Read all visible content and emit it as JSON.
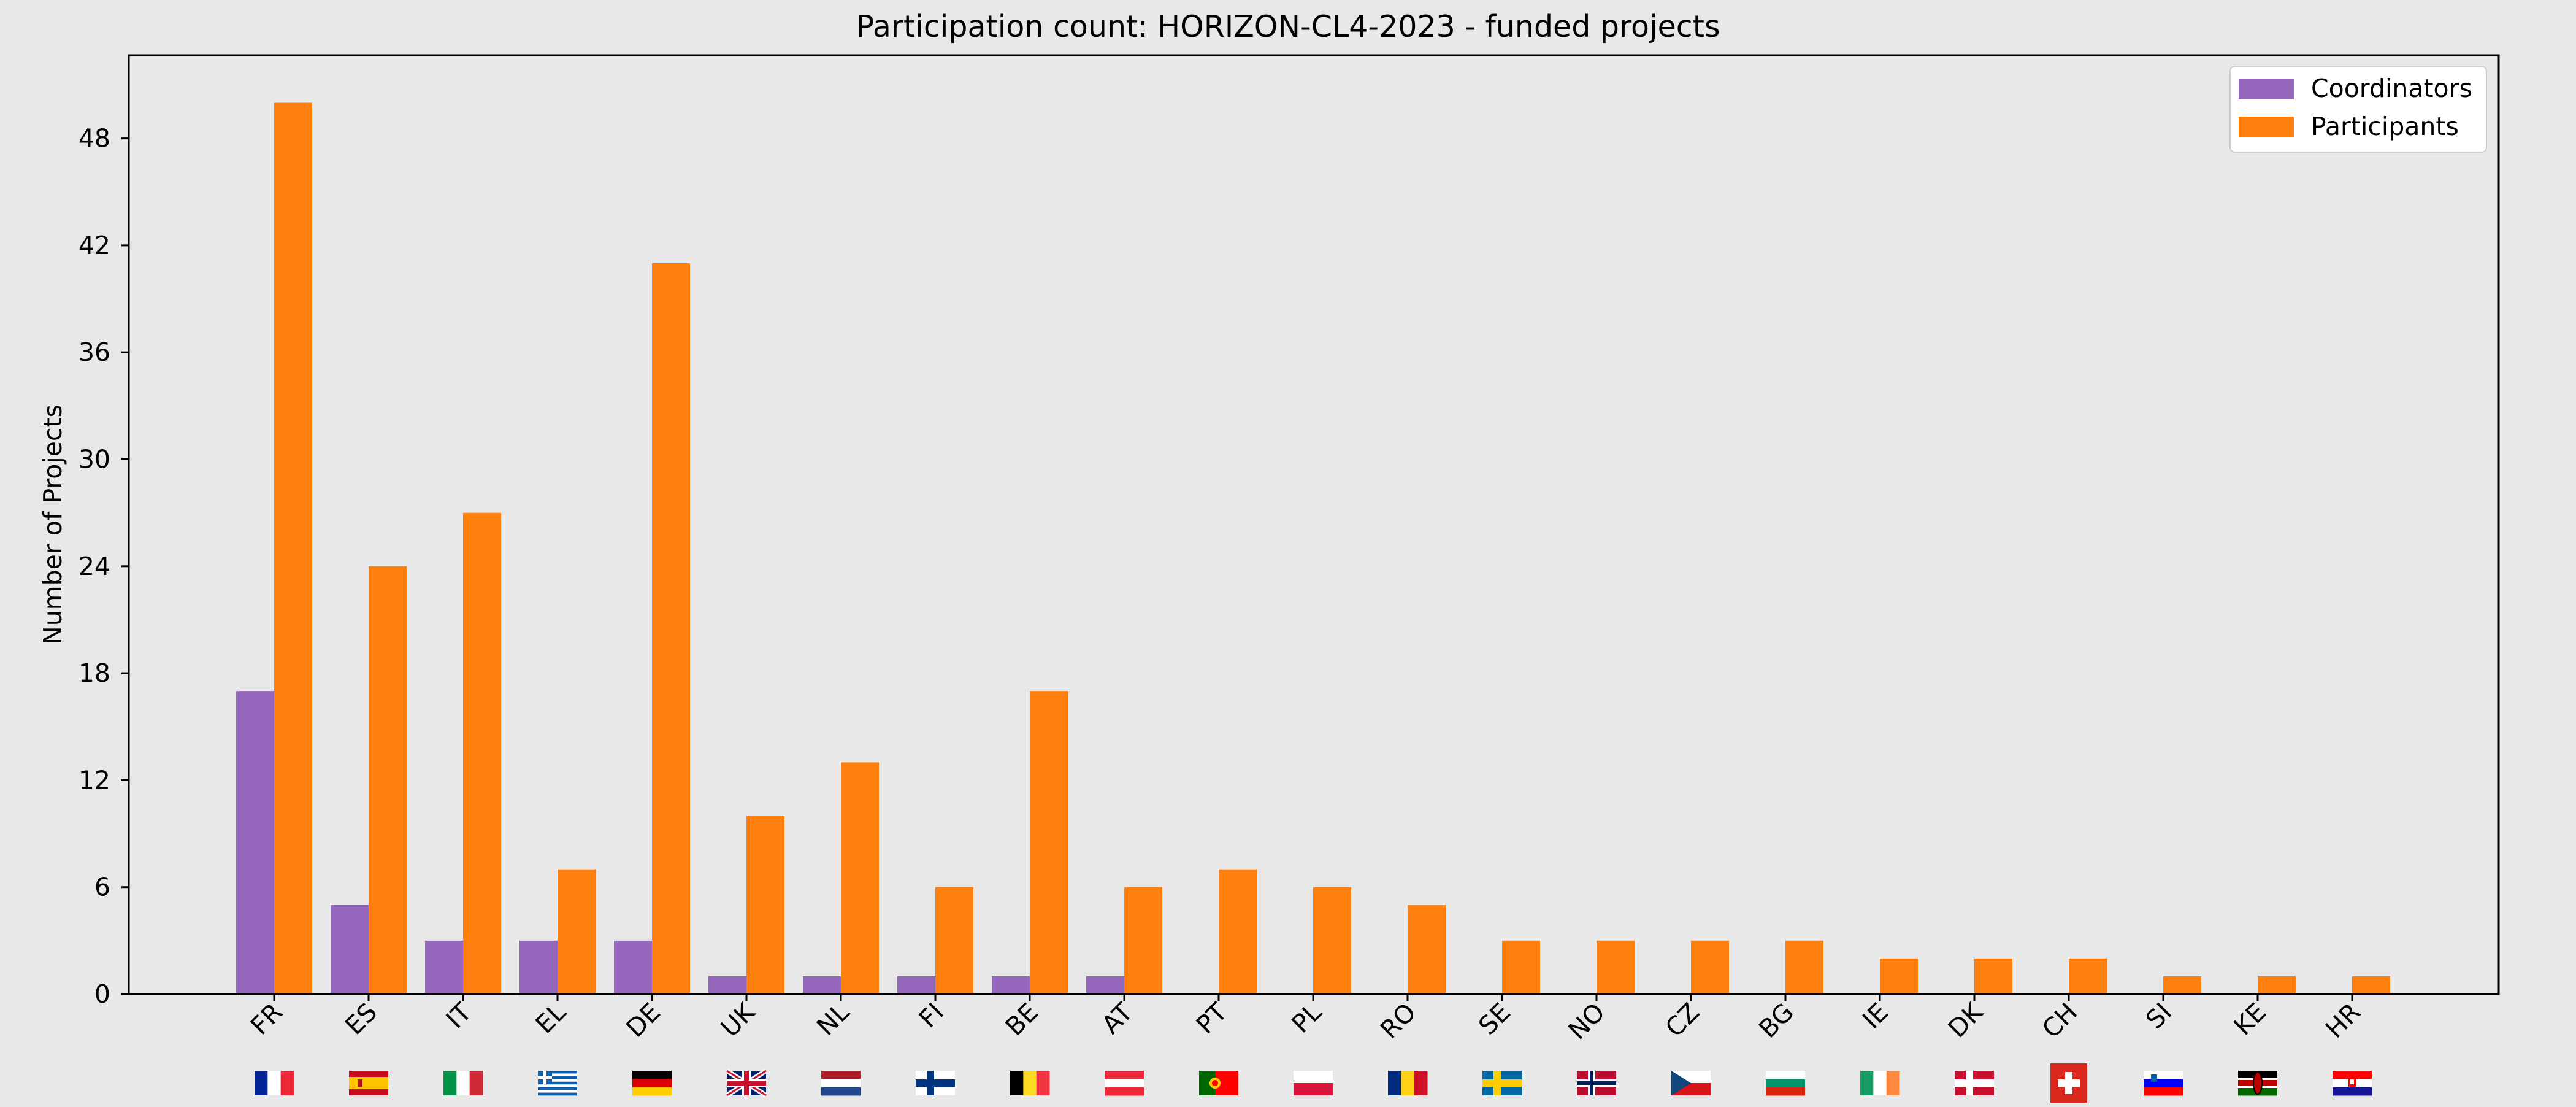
{
  "chart_data": {
    "type": "bar",
    "title": "Participation count: HORIZON-CL4-2023 - funded projects",
    "xlabel": "",
    "ylabel": "Number of Projects",
    "ylim": [
      0,
      52.6
    ],
    "yticks": [
      0,
      6,
      12,
      18,
      24,
      30,
      36,
      42,
      48
    ],
    "grid": false,
    "legend_position": "top-right",
    "categories": [
      "FR",
      "ES",
      "IT",
      "EL",
      "DE",
      "UK",
      "NL",
      "FI",
      "BE",
      "AT",
      "PT",
      "PL",
      "RO",
      "SE",
      "NO",
      "CZ",
      "BG",
      "IE",
      "DK",
      "CH",
      "SI",
      "KE",
      "HR"
    ],
    "series": [
      {
        "name": "Coordinators",
        "color": "#9467bd",
        "values": [
          17,
          5,
          3,
          3,
          3,
          1,
          1,
          1,
          1,
          1,
          0,
          0,
          0,
          0,
          0,
          0,
          0,
          0,
          0,
          0,
          0,
          0,
          0
        ]
      },
      {
        "name": "Participants",
        "color": "#ff7f0e",
        "values": [
          50,
          24,
          27,
          7,
          41,
          10,
          13,
          6,
          17,
          6,
          7,
          6,
          5,
          3,
          3,
          3,
          3,
          2,
          2,
          2,
          1,
          1,
          1
        ]
      }
    ],
    "flag_icons": [
      "flag-fr-icon",
      "flag-es-icon",
      "flag-it-icon",
      "flag-el-icon",
      "flag-de-icon",
      "flag-uk-icon",
      "flag-nl-icon",
      "flag-fi-icon",
      "flag-be-icon",
      "flag-at-icon",
      "flag-pt-icon",
      "flag-pl-icon",
      "flag-ro-icon",
      "flag-se-icon",
      "flag-no-icon",
      "flag-cz-icon",
      "flag-bg-icon",
      "flag-ie-icon",
      "flag-dk-icon",
      "flag-ch-icon",
      "flag-si-icon",
      "flag-ke-icon",
      "flag-hr-icon"
    ]
  }
}
